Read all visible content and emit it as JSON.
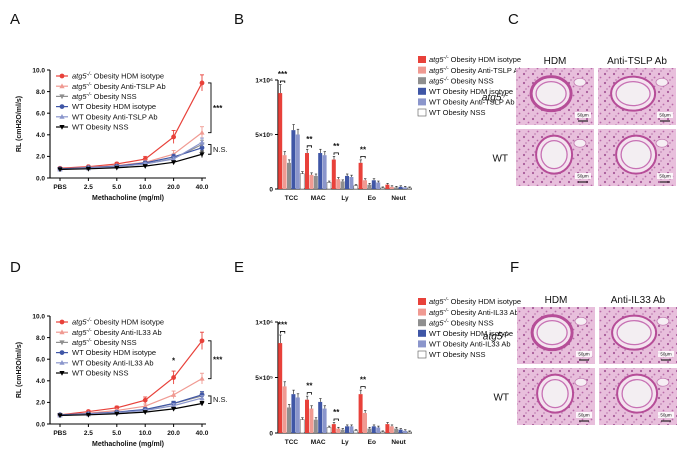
{
  "colors": {
    "hdm_atg5": "#e8413a",
    "anti_atg5": "#f09a92",
    "nss_atg5": "#8f8f8f",
    "hdm_wt": "#3f56a6",
    "anti_wt": "#8b96cc",
    "nss_wt": "#000000",
    "tissue": "#e4b7d6",
    "stain": "#b64d98"
  },
  "chart_data": [
    {
      "panel": "A",
      "type": "line",
      "xlabel": "Methacholine (mg/ml)",
      "ylabel": "RL (cmH2O/ml/s)",
      "categories": [
        "PBS",
        "2.5",
        "5.0",
        "10.0",
        "20.0",
        "40.0"
      ],
      "ylim": [
        0,
        10
      ],
      "yticks": [
        "0.0",
        "2.0",
        "4.0",
        "6.0",
        "8.0",
        "10.0"
      ],
      "series": [
        {
          "name": "atg5-/- Obesity HDM isotype",
          "gene": "atg5",
          "sup": "-/-",
          "rest": " Obesity HDM isotype",
          "color": "#e8413a",
          "marker": "circle",
          "values": [
            0.9,
            1.05,
            1.3,
            1.75,
            3.8,
            8.8
          ],
          "err": [
            0.1,
            0.12,
            0.15,
            0.25,
            0.6,
            0.75
          ]
        },
        {
          "name": "atg5-/- Obesity Anti-TSLP Ab",
          "gene": "atg5",
          "sup": "-/-",
          "rest": " Obesity Anti-TSLP Ab",
          "color": "#f09a92",
          "marker": "triangle",
          "values": [
            0.85,
            1.0,
            1.15,
            1.45,
            2.2,
            4.2
          ],
          "err": [
            0.1,
            0.1,
            0.12,
            0.2,
            0.35,
            0.55
          ]
        },
        {
          "name": "atg5-/- Obesity NSS",
          "gene": "atg5",
          "sup": "-/-",
          "rest": " Obesity NSS",
          "color": "#8f8f8f",
          "marker": "tridown",
          "values": [
            0.8,
            0.95,
            1.05,
            1.3,
            1.8,
            3.1
          ],
          "err": [
            0.08,
            0.1,
            0.1,
            0.15,
            0.25,
            0.4
          ]
        },
        {
          "name": "WT Obesity HDM isotype",
          "gene": "",
          "sup": "",
          "rest": "WT Obesity HDM isotype",
          "color": "#3f56a6",
          "marker": "circle",
          "values": [
            0.85,
            0.95,
            1.1,
            1.4,
            1.95,
            2.8
          ],
          "err": [
            0.08,
            0.1,
            0.12,
            0.15,
            0.25,
            0.35
          ]
        },
        {
          "name": "WT Obesity Anti-TSLP Ab",
          "gene": "",
          "sup": "",
          "rest": "WT Obesity Anti-TSLP Ab",
          "color": "#8b96cc",
          "marker": "triangle",
          "values": [
            0.8,
            0.9,
            1.05,
            1.3,
            1.75,
            3.3
          ],
          "err": [
            0.08,
            0.1,
            0.1,
            0.15,
            0.2,
            0.4
          ]
        },
        {
          "name": "WT Obesity NSS",
          "gene": "",
          "sup": "",
          "rest": "WT Obesity NSS",
          "color": "#000000",
          "marker": "tridown",
          "values": [
            0.8,
            0.85,
            0.95,
            1.1,
            1.45,
            2.2
          ],
          "err": [
            0.06,
            0.08,
            0.08,
            0.1,
            0.15,
            0.3
          ]
        }
      ],
      "annotations": [
        "***",
        "N.S."
      ]
    },
    {
      "panel": "B",
      "type": "bar",
      "categories": [
        "TCC",
        "MAC",
        "Ly",
        "Eo",
        "Neut"
      ],
      "ylim": [
        0,
        1000000
      ],
      "ytick_values": [
        0,
        500000,
        1000000
      ],
      "yticks": [
        "0",
        "5×10⁵",
        "1×10⁶"
      ],
      "series": [
        {
          "name": "atg5-/- Obesity HDM isotype",
          "gene": "atg5",
          "sup": "-/-",
          "rest": " Obesity HDM isotype",
          "color": "#e8413a",
          "values": [
            880000,
            330000,
            270000,
            240000,
            40000
          ]
        },
        {
          "name": "atg5-/- Obesity Anti-TSLP Ab",
          "gene": "atg5",
          "sup": "-/-",
          "rest": " Obesity Anti-TSLP Ab",
          "color": "#f09a92",
          "values": [
            310000,
            130000,
            90000,
            80000,
            20000
          ]
        },
        {
          "name": "atg5-/- Obesity NSS",
          "gene": "atg5",
          "sup": "-/-",
          "rest": " Obesity NSS",
          "color": "#8f8f8f",
          "values": [
            240000,
            120000,
            70000,
            40000,
            15000
          ]
        },
        {
          "name": "WT Obesity HDM isotype",
          "gene": "",
          "sup": "",
          "rest": "WT Obesity HDM isotype",
          "color": "#3f56a6",
          "values": [
            540000,
            330000,
            120000,
            80000,
            20000
          ]
        },
        {
          "name": "WT Obesity Anti-TSLP Ab",
          "gene": "",
          "sup": "",
          "rest": "WT Obesity Anti-TSLP Ab",
          "color": "#8b96cc",
          "values": [
            500000,
            310000,
            110000,
            60000,
            15000
          ]
        },
        {
          "name": "WT Obesity NSS",
          "gene": "",
          "sup": "",
          "rest": "WT Obesity NSS",
          "color": "#ffffff",
          "values": [
            140000,
            60000,
            30000,
            10000,
            10000
          ]
        }
      ],
      "annotations": [
        "***",
        "**",
        "**",
        "**"
      ]
    },
    {
      "panel": "D",
      "type": "line",
      "xlabel": "Methacholine (mg/ml)",
      "ylabel": "RL (cmH2O/ml/s)",
      "categories": [
        "PBS",
        "2.5",
        "5.0",
        "10.0",
        "20.0",
        "40.0"
      ],
      "ylim": [
        0,
        10
      ],
      "yticks": [
        "0.0",
        "2.0",
        "4.0",
        "6.0",
        "8.0",
        "10.0"
      ],
      "series": [
        {
          "name": "atg5-/- Obesity HDM isotype",
          "gene": "atg5",
          "sup": "-/-",
          "rest": " Obesity HDM isotype",
          "color": "#e8413a",
          "marker": "circle",
          "values": [
            0.85,
            1.15,
            1.5,
            2.2,
            4.3,
            7.7
          ],
          "err": [
            0.1,
            0.12,
            0.15,
            0.3,
            0.6,
            0.8
          ]
        },
        {
          "name": "atg5-/- Obesity Anti-IL33 Ab",
          "gene": "atg5",
          "sup": "-/-",
          "rest": " Obesity Anti-IL33 Ab",
          "color": "#f09a92",
          "marker": "triangle",
          "values": [
            0.85,
            1.0,
            1.25,
            1.65,
            2.7,
            4.2
          ],
          "err": [
            0.08,
            0.1,
            0.12,
            0.2,
            0.35,
            0.5
          ]
        },
        {
          "name": "atg5-/- Obesity NSS",
          "gene": "atg5",
          "sup": "-/-",
          "rest": " Obesity NSS",
          "color": "#8f8f8f",
          "marker": "tridown",
          "values": [
            0.8,
            0.9,
            1.05,
            1.3,
            1.9,
            2.6
          ],
          "err": [
            0.06,
            0.08,
            0.1,
            0.15,
            0.2,
            0.3
          ]
        },
        {
          "name": "WT Obesity HDM isotype",
          "gene": "",
          "sup": "",
          "rest": "WT Obesity HDM isotype",
          "color": "#3f56a6",
          "marker": "circle",
          "values": [
            0.85,
            0.95,
            1.1,
            1.35,
            1.9,
            2.7
          ],
          "err": [
            0.06,
            0.08,
            0.1,
            0.15,
            0.2,
            0.3
          ]
        },
        {
          "name": "WT Obesity Anti-IL33 Ab",
          "gene": "",
          "sup": "",
          "rest": "WT Obesity Anti-IL33 Ab",
          "color": "#8b96cc",
          "marker": "triangle",
          "values": [
            0.8,
            0.9,
            1.05,
            1.25,
            1.7,
            2.4
          ],
          "err": [
            0.06,
            0.08,
            0.1,
            0.12,
            0.2,
            0.25
          ]
        },
        {
          "name": "WT Obesity NSS",
          "gene": "",
          "sup": "",
          "rest": "WT Obesity NSS",
          "color": "#000000",
          "marker": "tridown",
          "values": [
            0.8,
            0.85,
            0.95,
            1.1,
            1.4,
            1.9
          ],
          "err": [
            0.05,
            0.06,
            0.08,
            0.1,
            0.12,
            0.2
          ]
        }
      ],
      "annotations": [
        "*",
        "***",
        "N.S."
      ]
    },
    {
      "panel": "E",
      "type": "bar",
      "categories": [
        "TCC",
        "MAC",
        "Ly",
        "Eo",
        "Neut"
      ],
      "ylim": [
        0,
        1000000
      ],
      "ytick_values": [
        0,
        500000,
        1000000
      ],
      "yticks": [
        "0",
        "5×10⁵",
        "1×10⁶"
      ],
      "series": [
        {
          "name": "atg5-/- Obesity HDM isotype",
          "gene": "atg5",
          "sup": "-/-",
          "rest": " Obesity HDM isotype",
          "color": "#e8413a",
          "values": [
            810000,
            300000,
            80000,
            350000,
            80000
          ]
        },
        {
          "name": "atg5-/- Obesity Anti-IL33 Ab",
          "gene": "atg5",
          "sup": "-/-",
          "rest": " Obesity Anti-IL33 Ab",
          "color": "#f09a92",
          "values": [
            420000,
            220000,
            40000,
            180000,
            60000
          ]
        },
        {
          "name": "atg5-/- Obesity NSS",
          "gene": "atg5",
          "sup": "-/-",
          "rest": " Obesity NSS",
          "color": "#8f8f8f",
          "values": [
            230000,
            120000,
            30000,
            40000,
            40000
          ]
        },
        {
          "name": "WT Obesity HDM isotype",
          "gene": "",
          "sup": "",
          "rest": "WT Obesity HDM isotype",
          "color": "#3f56a6",
          "values": [
            350000,
            280000,
            60000,
            60000,
            30000
          ]
        },
        {
          "name": "WT Obesity Anti-IL33 Ab",
          "gene": "",
          "sup": "",
          "rest": "WT Obesity Anti-IL33 Ab",
          "color": "#8b96cc",
          "values": [
            320000,
            220000,
            60000,
            50000,
            20000
          ]
        },
        {
          "name": "WT Obesity NSS",
          "gene": "",
          "sup": "",
          "rest": "WT Obesity NSS",
          "color": "#ffffff",
          "values": [
            120000,
            50000,
            20000,
            10000,
            10000
          ]
        }
      ],
      "annotations": [
        "***",
        "**",
        "**",
        "**"
      ]
    }
  ],
  "histology": [
    {
      "panel": "C",
      "columns": [
        "HDM",
        "Anti-TSLP Ab"
      ],
      "rows": [
        "atg5-/-",
        "WT"
      ],
      "row_gene": "atg5",
      "row_sup": "-/-",
      "scale": "50μm"
    },
    {
      "panel": "F",
      "columns": [
        "HDM",
        "Anti-IL33 Ab"
      ],
      "rows": [
        "atg5-/-",
        "WT"
      ],
      "row_gene": "atg5",
      "row_sup": "-/-",
      "scale": "50μm"
    }
  ]
}
